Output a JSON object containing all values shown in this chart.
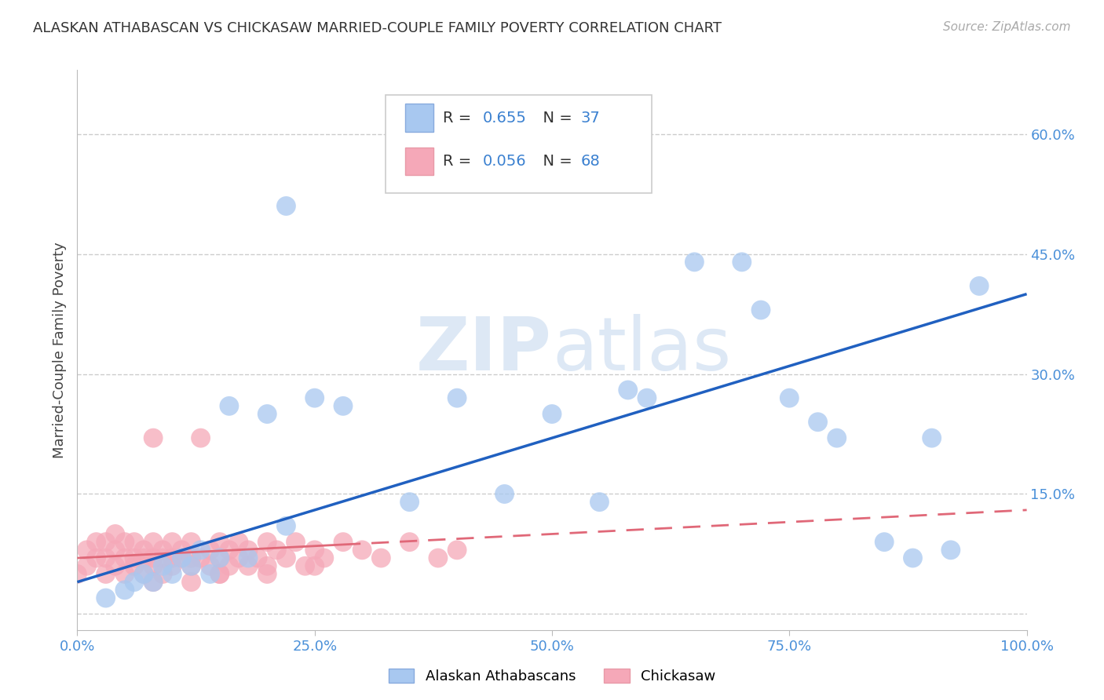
{
  "title": "ALASKAN ATHABASCAN VS CHICKASAW MARRIED-COUPLE FAMILY POVERTY CORRELATION CHART",
  "source": "Source: ZipAtlas.com",
  "ylabel": "Married-Couple Family Poverty",
  "xlim": [
    0.0,
    1.0
  ],
  "ylim": [
    -0.02,
    0.68
  ],
  "xticks": [
    0.0,
    0.25,
    0.5,
    0.75,
    1.0
  ],
  "xtick_labels": [
    "0.0%",
    "25.0%",
    "50.0%",
    "75.0%",
    "100.0%"
  ],
  "yticks": [
    0.0,
    0.15,
    0.3,
    0.45,
    0.6
  ],
  "ytick_labels": [
    "",
    "15.0%",
    "30.0%",
    "45.0%",
    "60.0%"
  ],
  "blue_R": 0.655,
  "blue_N": 37,
  "pink_R": 0.056,
  "pink_N": 68,
  "legend_labels": [
    "Alaskan Athabascans",
    "Chickasaw"
  ],
  "blue_color": "#a8c8f0",
  "pink_color": "#f5a8b8",
  "blue_line_color": "#2060c0",
  "pink_line_color": "#e06878",
  "blue_x": [
    0.03,
    0.05,
    0.06,
    0.07,
    0.08,
    0.09,
    0.1,
    0.11,
    0.12,
    0.13,
    0.14,
    0.15,
    0.16,
    0.18,
    0.2,
    0.22,
    0.25,
    0.28,
    0.35,
    0.4,
    0.45,
    0.5,
    0.55,
    0.58,
    0.6,
    0.65,
    0.7,
    0.72,
    0.75,
    0.78,
    0.8,
    0.85,
    0.88,
    0.9,
    0.92,
    0.95,
    0.22
  ],
  "blue_y": [
    0.02,
    0.03,
    0.04,
    0.05,
    0.04,
    0.06,
    0.05,
    0.07,
    0.06,
    0.08,
    0.05,
    0.07,
    0.26,
    0.07,
    0.25,
    0.11,
    0.27,
    0.26,
    0.14,
    0.27,
    0.15,
    0.25,
    0.14,
    0.28,
    0.27,
    0.44,
    0.44,
    0.38,
    0.27,
    0.24,
    0.22,
    0.09,
    0.07,
    0.22,
    0.08,
    0.41,
    0.51
  ],
  "pink_x": [
    0.0,
    0.01,
    0.01,
    0.02,
    0.02,
    0.03,
    0.03,
    0.03,
    0.04,
    0.04,
    0.04,
    0.05,
    0.05,
    0.05,
    0.06,
    0.06,
    0.06,
    0.07,
    0.07,
    0.07,
    0.08,
    0.08,
    0.08,
    0.08,
    0.09,
    0.09,
    0.09,
    0.1,
    0.1,
    0.1,
    0.11,
    0.11,
    0.12,
    0.12,
    0.12,
    0.13,
    0.13,
    0.14,
    0.14,
    0.15,
    0.15,
    0.15,
    0.16,
    0.16,
    0.17,
    0.17,
    0.18,
    0.18,
    0.19,
    0.2,
    0.2,
    0.21,
    0.22,
    0.23,
    0.24,
    0.25,
    0.26,
    0.28,
    0.3,
    0.32,
    0.35,
    0.38,
    0.4,
    0.08,
    0.12,
    0.15,
    0.2,
    0.25
  ],
  "pink_y": [
    0.05,
    0.06,
    0.08,
    0.07,
    0.09,
    0.05,
    0.07,
    0.09,
    0.06,
    0.08,
    0.1,
    0.05,
    0.07,
    0.09,
    0.06,
    0.07,
    0.09,
    0.05,
    0.07,
    0.08,
    0.06,
    0.07,
    0.09,
    0.22,
    0.05,
    0.07,
    0.08,
    0.06,
    0.07,
    0.09,
    0.07,
    0.08,
    0.06,
    0.07,
    0.09,
    0.07,
    0.22,
    0.06,
    0.08,
    0.05,
    0.07,
    0.09,
    0.06,
    0.08,
    0.07,
    0.09,
    0.06,
    0.08,
    0.07,
    0.06,
    0.09,
    0.08,
    0.07,
    0.09,
    0.06,
    0.08,
    0.07,
    0.09,
    0.08,
    0.07,
    0.09,
    0.07,
    0.08,
    0.04,
    0.04,
    0.05,
    0.05,
    0.06
  ],
  "blue_line_x0": 0.0,
  "blue_line_y0": 0.04,
  "blue_line_x1": 1.0,
  "blue_line_y1": 0.4,
  "pink_line_x0": 0.0,
  "pink_line_y0": 0.07,
  "pink_line_x1": 1.0,
  "pink_line_y1": 0.13
}
